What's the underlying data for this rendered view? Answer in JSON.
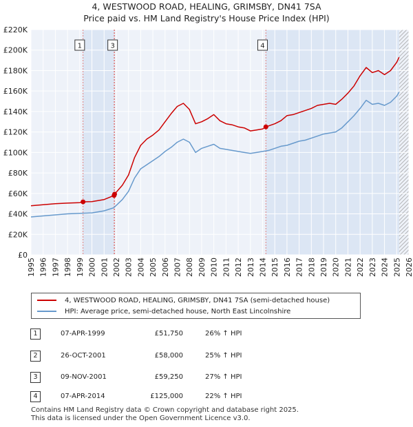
{
  "header": {
    "title_line1": "4, WESTWOOD ROAD, HEALING, GRIMSBY, DN41 7SA",
    "title_line2": "Price paid vs. HM Land Registry's House Price Index (HPI)"
  },
  "colors": {
    "price_line": "#cc0000",
    "hpi_line": "#6699cc",
    "plot_bg": "#eef2f9",
    "shade": "#dce6f4",
    "grid": "#ffffff",
    "marker_line": "#e08080",
    "hatch": "#9a9a9a"
  },
  "chart_data": {
    "type": "line",
    "x_range": [
      1995,
      2026
    ],
    "ylim": [
      0,
      220000
    ],
    "y_ticks": [
      0,
      20000,
      40000,
      60000,
      80000,
      100000,
      120000,
      140000,
      160000,
      180000,
      200000,
      220000
    ],
    "y_tick_labels": [
      "£0",
      "£20K",
      "£40K",
      "£60K",
      "£80K",
      "£100K",
      "£120K",
      "£140K",
      "£160K",
      "£180K",
      "£200K",
      "£220K"
    ],
    "x_tick_labels": [
      "1995",
      "1996",
      "1997",
      "1998",
      "1999",
      "2000",
      "2001",
      "2002",
      "2003",
      "2004",
      "2005",
      "2006",
      "2007",
      "2008",
      "2009",
      "2010",
      "2011",
      "2012",
      "2013",
      "2014",
      "2015",
      "2016",
      "2017",
      "2018",
      "2019",
      "2020",
      "2021",
      "2022",
      "2023",
      "2024",
      "2025",
      "2026"
    ],
    "shaded_ranges": [
      [
        1999.27,
        2001.86
      ],
      [
        2014.27,
        2025.2
      ]
    ],
    "hatched_range": [
      2025.2,
      2026
    ],
    "series": [
      {
        "name": "4, WESTWOOD ROAD, HEALING, GRIMSBY, DN41 7SA (semi-detached house)",
        "x": [
          1995.0,
          1996.0,
          1997.0,
          1998.0,
          1999.0,
          1999.27,
          2000.0,
          2001.0,
          2001.82,
          2001.86,
          2002.5,
          2003.0,
          2003.5,
          2004.0,
          2004.5,
          2005.0,
          2005.5,
          2006.0,
          2006.5,
          2007.0,
          2007.5,
          2008.0,
          2008.5,
          2009.0,
          2009.5,
          2010.0,
          2010.5,
          2011.0,
          2011.5,
          2012.0,
          2012.5,
          2013.0,
          2013.5,
          2014.0,
          2014.27,
          2015.0,
          2015.5,
          2016.0,
          2016.5,
          2017.0,
          2017.5,
          2018.0,
          2018.5,
          2019.0,
          2019.5,
          2020.0,
          2020.5,
          2021.0,
          2021.5,
          2022.0,
          2022.5,
          2023.0,
          2023.5,
          2024.0,
          2024.5,
          2025.0,
          2025.2
        ],
        "values": [
          48000,
          49000,
          50000,
          50500,
          51000,
          51750,
          52000,
          54000,
          58000,
          59250,
          68000,
          78000,
          95000,
          107000,
          113000,
          117000,
          122000,
          130000,
          138000,
          145000,
          148000,
          142000,
          128000,
          130000,
          133000,
          137000,
          131000,
          128000,
          127000,
          125000,
          124000,
          121000,
          122000,
          123000,
          125000,
          128000,
          131000,
          136000,
          137000,
          139000,
          141000,
          143000,
          146000,
          147000,
          148000,
          147000,
          152000,
          158000,
          165000,
          175000,
          183000,
          178000,
          180000,
          176000,
          180000,
          188000,
          193000
        ]
      },
      {
        "name": "HPI: Average price, semi-detached house, North East Lincolnshire",
        "x": [
          1995.0,
          1996.0,
          1997.0,
          1998.0,
          1999.0,
          2000.0,
          2001.0,
          2001.8,
          2002.5,
          2003.0,
          2003.5,
          2004.0,
          2004.5,
          2005.0,
          2005.5,
          2006.0,
          2006.5,
          2007.0,
          2007.5,
          2008.0,
          2008.5,
          2009.0,
          2009.5,
          2010.0,
          2010.5,
          2011.0,
          2011.5,
          2012.0,
          2012.5,
          2013.0,
          2013.5,
          2014.0,
          2014.5,
          2015.0,
          2015.5,
          2016.0,
          2016.5,
          2017.0,
          2017.5,
          2018.0,
          2018.5,
          2019.0,
          2019.5,
          2020.0,
          2020.5,
          2021.0,
          2021.5,
          2022.0,
          2022.5,
          2023.0,
          2023.5,
          2024.0,
          2024.5,
          2025.0,
          2025.2
        ],
        "values": [
          37000,
          38000,
          39000,
          40000,
          40500,
          41000,
          43000,
          46000,
          54000,
          62000,
          75000,
          84000,
          88000,
          92000,
          96000,
          101000,
          105000,
          110000,
          113000,
          110000,
          100000,
          104000,
          106000,
          108000,
          104000,
          103000,
          102000,
          101000,
          100000,
          99000,
          100000,
          101000,
          102000,
          104000,
          106000,
          107000,
          109000,
          111000,
          112000,
          114000,
          116000,
          118000,
          119000,
          120000,
          124000,
          130000,
          136000,
          143000,
          151000,
          147000,
          148000,
          146000,
          149000,
          155000,
          159000
        ]
      }
    ],
    "sales": [
      {
        "label": "1",
        "x": 1999.27,
        "value": 51750
      },
      {
        "label": "2",
        "x": 2001.82,
        "value": 58000
      },
      {
        "label": "3",
        "x": 2001.86,
        "value": 59250
      },
      {
        "label": "4",
        "x": 2014.27,
        "value": 125000
      }
    ],
    "marker_labels": [
      {
        "label": "1",
        "x": 1999.0
      },
      {
        "label": "3",
        "x": 2001.7
      },
      {
        "label": "4",
        "x": 2014.0
      }
    ]
  },
  "legend": {
    "price_label": "4, WESTWOOD ROAD, HEALING, GRIMSBY, DN41 7SA (semi-detached house)",
    "hpi_label": "HPI: Average price, semi-detached house, North East Lincolnshire"
  },
  "sales_table": [
    {
      "num": "1",
      "date": "07-APR-1999",
      "price": "£51,750",
      "hpi": "26% ↑ HPI"
    },
    {
      "num": "2",
      "date": "26-OCT-2001",
      "price": "£58,000",
      "hpi": "25% ↑ HPI"
    },
    {
      "num": "3",
      "date": "09-NOV-2001",
      "price": "£59,250",
      "hpi": "27% ↑ HPI"
    },
    {
      "num": "4",
      "date": "07-APR-2014",
      "price": "£125,000",
      "hpi": "22% ↑ HPI"
    }
  ],
  "footer": {
    "line1": "Contains HM Land Registry data © Crown copyright and database right 2025.",
    "line2": "This data is licensed under the Open Government Licence v3.0."
  }
}
